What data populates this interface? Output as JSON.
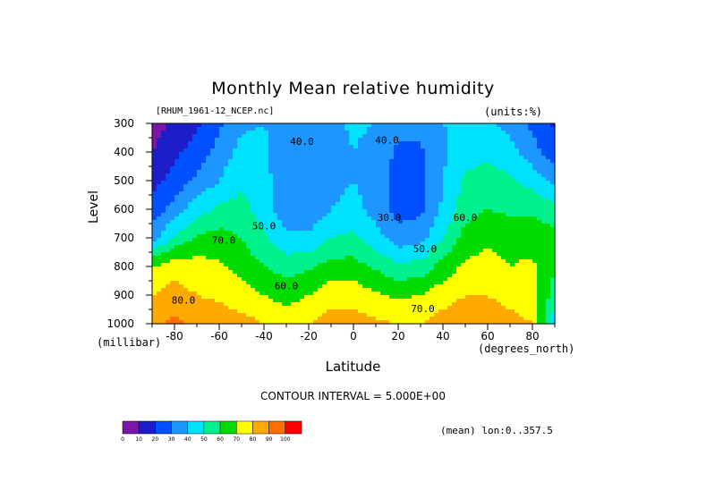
{
  "chart_data": {
    "type": "contour",
    "title": "Monthly Mean relative humidity",
    "dataset": "[RHUM_1961-12_NCEP.nc]",
    "units": "(units:%)",
    "xlabel": "Latitude",
    "x_units": "(degrees_north)",
    "ylabel": "Level",
    "y_units": "(millibar)",
    "xlim": [
      -90,
      90
    ],
    "ylim": [
      1000,
      300
    ],
    "x_ticks": [
      -80,
      -60,
      -40,
      -20,
      0,
      20,
      40,
      60,
      80
    ],
    "y_ticks": [
      300,
      400,
      500,
      600,
      700,
      800,
      900,
      1000
    ],
    "contour_interval": "CONTOUR INTERVAL = 5.000E+00",
    "footer": "(mean) lon:0..357.5",
    "contour_labels": [
      {
        "text": "40.0",
        "lat": -23,
        "level": 375
      },
      {
        "text": "40.0",
        "lat": 15,
        "level": 370
      },
      {
        "text": "30.0",
        "lat": 16,
        "level": 640
      },
      {
        "text": "50.0",
        "lat": -40,
        "level": 670
      },
      {
        "text": "50.0",
        "lat": 32,
        "level": 750
      },
      {
        "text": "60.0",
        "lat": 50,
        "level": 640
      },
      {
        "text": "60.0",
        "lat": -30,
        "level": 880
      },
      {
        "text": "70.0",
        "lat": -58,
        "level": 720
      },
      {
        "text": "70.0",
        "lat": 31,
        "level": 960
      },
      {
        "text": "80.0",
        "lat": -76,
        "level": 930
      }
    ],
    "levels": [
      300,
      400,
      500,
      600,
      700,
      800,
      900,
      1000
    ],
    "lats": [
      -90,
      -80,
      -70,
      -60,
      -50,
      -40,
      -30,
      -20,
      -10,
      0,
      10,
      20,
      30,
      40,
      50,
      60,
      70,
      80,
      90
    ],
    "values": [
      [
        5,
        12,
        18,
        28,
        38,
        40,
        36,
        36,
        38,
        42,
        40,
        34,
        34,
        40,
        42,
        42,
        36,
        28,
        18
      ],
      [
        10,
        18,
        24,
        34,
        44,
        42,
        32,
        30,
        34,
        40,
        36,
        28,
        28,
        38,
        46,
        48,
        44,
        34,
        24
      ],
      [
        16,
        24,
        32,
        40,
        48,
        44,
        32,
        30,
        36,
        40,
        34,
        26,
        26,
        40,
        52,
        54,
        52,
        46,
        38
      ],
      [
        24,
        34,
        46,
        52,
        54,
        44,
        34,
        32,
        40,
        44,
        36,
        26,
        28,
        42,
        56,
        60,
        58,
        58,
        54
      ],
      [
        36,
        52,
        62,
        64,
        60,
        52,
        42,
        42,
        50,
        52,
        44,
        34,
        36,
        50,
        64,
        68,
        66,
        66,
        64
      ],
      [
        70,
        76,
        74,
        72,
        66,
        60,
        56,
        58,
        64,
        64,
        58,
        52,
        54,
        64,
        72,
        74,
        70,
        72,
        60
      ],
      [
        80,
        84,
        80,
        78,
        74,
        70,
        66,
        70,
        76,
        76,
        72,
        68,
        70,
        76,
        80,
        80,
        76,
        74,
        56
      ],
      [
        88,
        92,
        88,
        86,
        84,
        80,
        76,
        80,
        84,
        84,
        82,
        80,
        80,
        84,
        86,
        86,
        84,
        80,
        40
      ]
    ],
    "colorbar": {
      "ticks": [
        0,
        10,
        20,
        30,
        40,
        50,
        60,
        70,
        80,
        90,
        100
      ],
      "colors": [
        "#7a16a8",
        "#1e1ec8",
        "#0050ff",
        "#1e96ff",
        "#00e1ff",
        "#00f08c",
        "#00dc00",
        "#ffff00",
        "#ffaa00",
        "#ff6e00",
        "#ff0000"
      ]
    }
  }
}
